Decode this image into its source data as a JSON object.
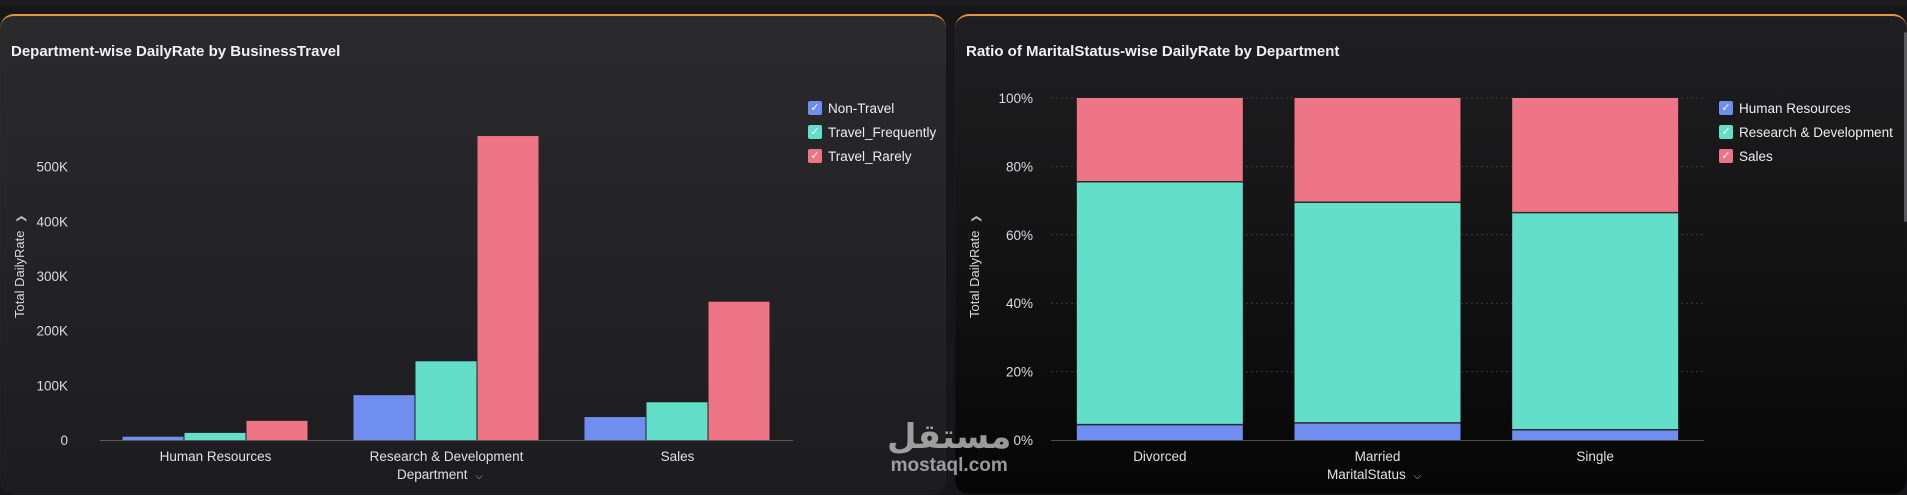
{
  "left_chart": {
    "title": "Department-wise DailyRate by BusinessTravel",
    "xlabel": "Department",
    "ylabel": "Total DailyRate",
    "colors": [
      "#6f8ef0",
      "#63dec8",
      "#ee7585"
    ],
    "legend": [
      {
        "label": "Non-Travel"
      },
      {
        "label": "Travel_Frequently"
      },
      {
        "label": "Travel_Rarely"
      }
    ]
  },
  "right_chart": {
    "title": "Ratio of MaritalStatus-wise DailyRate by Department",
    "xlabel": "MaritalStatus",
    "ylabel": "Total DailyRate",
    "colors": [
      "#6f8ef0",
      "#63dec8",
      "#ee7585"
    ],
    "legend": [
      {
        "label": "Human Resources"
      },
      {
        "label": "Research & Development"
      },
      {
        "label": "Sales"
      }
    ]
  },
  "watermark": {
    "arabic": "مستقل",
    "latin": "mostaql.com"
  },
  "chart_data": [
    {
      "type": "bar",
      "title": "Department-wise DailyRate by BusinessTravel",
      "xlabel": "Department",
      "ylabel": "Total DailyRate",
      "categories": [
        "Human Resources",
        "Research & Development",
        "Sales"
      ],
      "series": [
        {
          "name": "Non-Travel",
          "values": [
            6000,
            82000,
            42000
          ]
        },
        {
          "name": "Travel_Frequently",
          "values": [
            13000,
            144000,
            69000
          ]
        },
        {
          "name": "Travel_Rarely",
          "values": [
            35000,
            556000,
            253000
          ]
        }
      ],
      "ylim": [
        0,
        600000
      ],
      "yticks": [
        0,
        100000,
        200000,
        300000,
        400000,
        500000
      ],
      "ytick_labels": [
        "0",
        "100K",
        "200K",
        "300K",
        "400K",
        "500K"
      ],
      "grid": false,
      "legend_position": "top-right"
    },
    {
      "type": "bar",
      "stacked": "percent",
      "title": "Ratio of MaritalStatus-wise DailyRate by Department",
      "xlabel": "MaritalStatus",
      "ylabel": "Total DailyRate",
      "categories": [
        "Divorced",
        "Married",
        "Single"
      ],
      "series": [
        {
          "name": "Human Resources",
          "values": [
            4.5,
            5,
            3
          ]
        },
        {
          "name": "Research & Development",
          "values": [
            71,
            64.5,
            63.5
          ]
        },
        {
          "name": "Sales",
          "values": [
            24.5,
            30.5,
            33.5
          ]
        }
      ],
      "ylim": [
        0,
        100
      ],
      "yticks": [
        0,
        20,
        40,
        60,
        80,
        100
      ],
      "ytick_labels": [
        "0%",
        "20%",
        "40%",
        "60%",
        "80%",
        "100%"
      ],
      "grid": true,
      "legend_position": "top-right"
    }
  ]
}
